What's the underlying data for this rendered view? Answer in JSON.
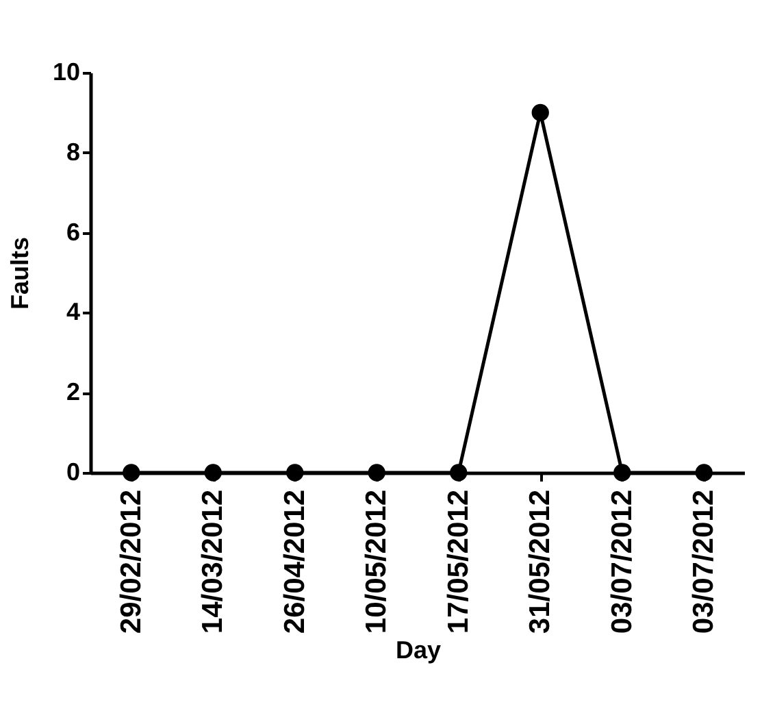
{
  "chart_data": {
    "type": "line",
    "xlabel": "Day",
    "ylabel": "Faults",
    "categories": [
      "29/02/2012",
      "14/03/2012",
      "26/04/2012",
      "10/05/2012",
      "17/05/2012",
      "31/05/2012",
      "03/07/2012",
      "03/07/2012"
    ],
    "series": [
      {
        "color": "#000000",
        "values": [
          0,
          0,
          0,
          0,
          0,
          9,
          0,
          0
        ]
      }
    ],
    "ylim": [
      0,
      10
    ],
    "yticks": [
      0,
      2,
      4,
      6,
      8,
      10
    ],
    "marker": "circle",
    "line_style": "solid",
    "grid": false
  }
}
